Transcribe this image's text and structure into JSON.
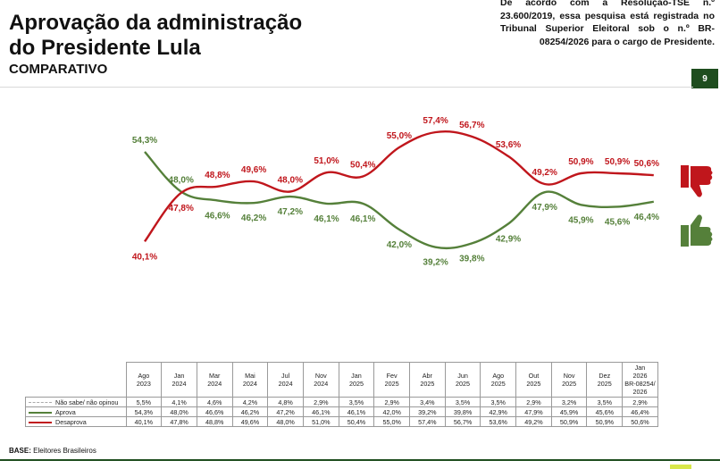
{
  "header": {
    "title_line1": "Aprovação da administração",
    "title_line2": "do Presidente Lula",
    "subtitle": "COMPARATIVO",
    "notice": "De acordo com a Resolução-TSE n.º 23.600/2019, essa pesquisa está registrada no Tribunal Superior Eleitoral sob o n.º BR-08254/2026 para o cargo de Presidente.",
    "page_number": "9"
  },
  "icons": {
    "approve": "thumbs-up-icon",
    "disapprove": "thumbs-down-icon"
  },
  "colors": {
    "approve": "#55803a",
    "disapprove": "#c0161c",
    "dark_green": "#1e4d1e",
    "accent": "#d8e84a"
  },
  "chart_data": {
    "type": "line",
    "title": "Aprovação da administração do Presidente Lula",
    "xlabel": "",
    "ylabel": "",
    "ylim": [
      38,
      58
    ],
    "grid": false,
    "categories": [
      "Ago 2023",
      "Jan 2024",
      "Mar 2024",
      "Mai 2024",
      "Jul 2024",
      "Nov 2024",
      "Jan 2025",
      "Fev 2025",
      "Abr 2025",
      "Jun 2025",
      "Ago 2025",
      "Out 2025",
      "Nov 2025",
      "Dez 2025",
      "Jan 2026 BR-08254/2026"
    ],
    "series": [
      {
        "name": "Aprova",
        "values": [
          54.3,
          48.0,
          46.6,
          46.2,
          47.2,
          46.1,
          46.1,
          42.0,
          39.2,
          39.8,
          42.9,
          47.9,
          45.9,
          45.6,
          46.4
        ],
        "labels": [
          "54,3%",
          "48,0%",
          "46,6%",
          "46,2%",
          "47,2%",
          "46,1%",
          "46,1%",
          "42,0%",
          "39,2%",
          "39,8%",
          "42,9%",
          "47,9%",
          "45,9%",
          "45,6%",
          "46,4%"
        ]
      },
      {
        "name": "Desaprova",
        "values": [
          40.1,
          47.8,
          48.8,
          49.6,
          48.0,
          51.0,
          50.4,
          55.0,
          57.4,
          56.7,
          53.6,
          49.2,
          50.9,
          50.9,
          50.6
        ],
        "labels": [
          "40,1%",
          "47,8%",
          "48,8%",
          "49,6%",
          "48,0%",
          "51,0%",
          "50,4%",
          "55,0%",
          "57,4%",
          "56,7%",
          "53,6%",
          "49,2%",
          "50,9%",
          "50,9%",
          "50,6%"
        ]
      }
    ]
  },
  "table": {
    "columns": [
      [
        "Ago",
        "2023"
      ],
      [
        "Jan",
        "2024"
      ],
      [
        "Mar",
        "2024"
      ],
      [
        "Mai",
        "2024"
      ],
      [
        "Jul",
        "2024"
      ],
      [
        "Nov",
        "2024"
      ],
      [
        "Jan",
        "2025"
      ],
      [
        "Fev",
        "2025"
      ],
      [
        "Abr",
        "2025"
      ],
      [
        "Jun",
        "2025"
      ],
      [
        "Ago",
        "2025"
      ],
      [
        "Out",
        "2025"
      ],
      [
        "Nov",
        "2025"
      ],
      [
        "Dez",
        "2025"
      ],
      [
        "Jan",
        "2026",
        "BR-08254/",
        "2026"
      ]
    ],
    "rows": [
      {
        "label": "Não sabe/ não opinou",
        "cells": [
          "5,5%",
          "4,1%",
          "4,6%",
          "4,2%",
          "4,8%",
          "2,9%",
          "3,5%",
          "2,9%",
          "3,4%",
          "3,5%",
          "3,5%",
          "2,9%",
          "3,2%",
          "3,5%",
          "2,9%"
        ]
      },
      {
        "label": "Aprova",
        "cells": [
          "54,3%",
          "48,0%",
          "46,6%",
          "46,2%",
          "47,2%",
          "46,1%",
          "46,1%",
          "42,0%",
          "39,2%",
          "39,8%",
          "42,9%",
          "47,9%",
          "45,9%",
          "45,6%",
          "46,4%"
        ]
      },
      {
        "label": "Desaprova",
        "cells": [
          "40,1%",
          "47,8%",
          "48,8%",
          "49,6%",
          "48,0%",
          "51,0%",
          "50,4%",
          "55,0%",
          "57,4%",
          "56,7%",
          "53,6%",
          "49,2%",
          "50,9%",
          "50,9%",
          "50,6%"
        ]
      }
    ]
  },
  "footer": {
    "base_label": "BASE:",
    "base_value": "Eleitores Brasileiros"
  }
}
